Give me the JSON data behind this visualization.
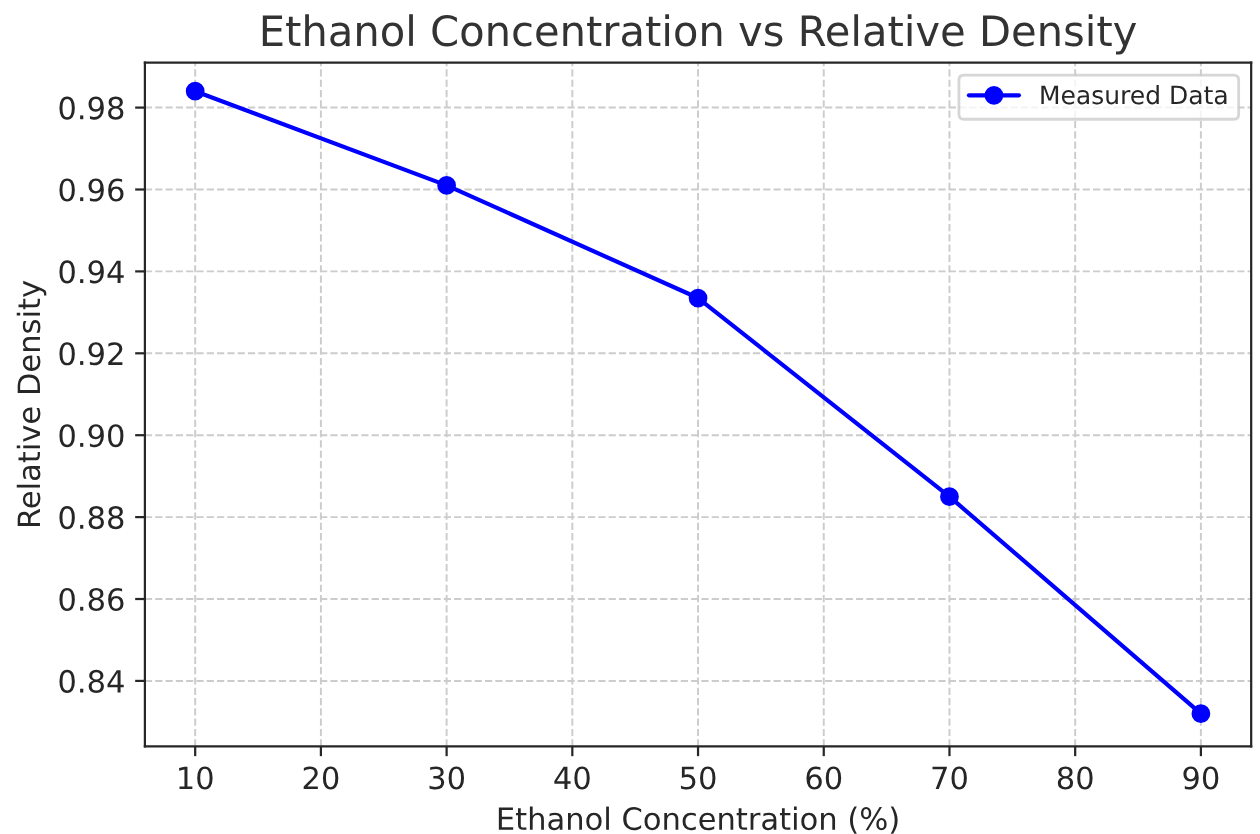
{
  "chart_data": {
    "type": "line",
    "title": "Ethanol Concentration vs Relative Density",
    "xlabel": "Ethanol Concentration (%)",
    "ylabel": "Relative Density",
    "x": [
      10,
      30,
      50,
      70,
      90
    ],
    "series": [
      {
        "name": "Measured Data",
        "color": "#0000ff",
        "values": [
          0.984,
          0.961,
          0.9335,
          0.885,
          0.832
        ]
      }
    ],
    "xlim": [
      6,
      94
    ],
    "xticks": [
      10,
      20,
      30,
      40,
      50,
      60,
      70,
      80,
      90
    ],
    "ylim": [
      0.824,
      0.991
    ],
    "yticks": [
      {
        "value": 0.84,
        "label": "0.84"
      },
      {
        "value": 0.86,
        "label": "0.86"
      },
      {
        "value": 0.88,
        "label": "0.88"
      },
      {
        "value": 0.9,
        "label": "0.90"
      },
      {
        "value": 0.92,
        "label": "0.92"
      },
      {
        "value": 0.94,
        "label": "0.94"
      },
      {
        "value": 0.96,
        "label": "0.96"
      },
      {
        "value": 0.98,
        "label": "0.98"
      }
    ],
    "grid": true,
    "legend": "top right",
    "marker": "circle",
    "line_style": "solid"
  }
}
